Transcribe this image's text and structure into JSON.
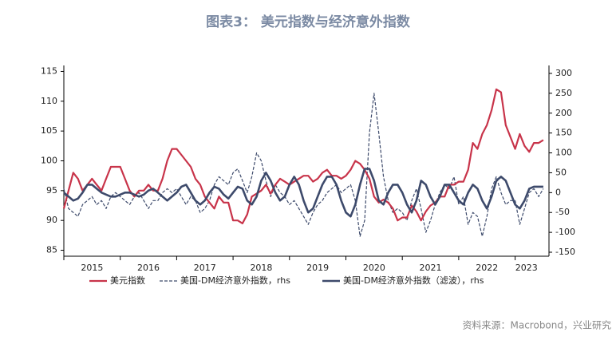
{
  "chart_data": {
    "type": "line",
    "title": "图表3：  美元指数与经济意外指数",
    "source": "资料来源：Macrobond，兴业研究",
    "x": [
      2015,
      2015.083,
      2015.167,
      2015.25,
      2015.333,
      2015.417,
      2015.5,
      2015.583,
      2015.667,
      2015.75,
      2015.833,
      2015.917,
      2016,
      2016.083,
      2016.167,
      2016.25,
      2016.333,
      2016.417,
      2016.5,
      2016.583,
      2016.667,
      2016.75,
      2016.833,
      2016.917,
      2017,
      2017.083,
      2017.167,
      2017.25,
      2017.333,
      2017.417,
      2017.5,
      2017.583,
      2017.667,
      2017.75,
      2017.833,
      2017.917,
      2018,
      2018.083,
      2018.167,
      2018.25,
      2018.333,
      2018.417,
      2018.5,
      2018.583,
      2018.667,
      2018.75,
      2018.833,
      2018.917,
      2019,
      2019.083,
      2019.167,
      2019.25,
      2019.333,
      2019.417,
      2019.5,
      2019.583,
      2019.667,
      2019.75,
      2019.833,
      2019.917,
      2020,
      2020.083,
      2020.167,
      2020.25,
      2020.333,
      2020.417,
      2020.5,
      2020.583,
      2020.667,
      2020.75,
      2020.833,
      2020.917,
      2021,
      2021.083,
      2021.167,
      2021.25,
      2021.333,
      2021.417,
      2021.5,
      2021.583,
      2021.667,
      2021.75,
      2021.833,
      2021.917,
      2022,
      2022.083,
      2022.167,
      2022.25,
      2022.333,
      2022.417,
      2022.5,
      2022.583,
      2022.667,
      2022.75,
      2022.833,
      2022.917,
      2023,
      2023.083,
      2023.167,
      2023.25,
      2023.333,
      2023.417,
      2023.5
    ],
    "series": [
      {
        "name": "美元指数",
        "color": "#c8344a",
        "style": "solid",
        "width": 2.2,
        "values": [
          92,
          95,
          98,
          97,
          95,
          96,
          97,
          96,
          95,
          97,
          99,
          99,
          99,
          97,
          95,
          94,
          95,
          95,
          96,
          95,
          95,
          97,
          100,
          102,
          102,
          101,
          100,
          99,
          97,
          96,
          94,
          93,
          92,
          94,
          93,
          93,
          90,
          90,
          89.5,
          91,
          94,
          94.5,
          95,
          96,
          94.5,
          96,
          97,
          96.5,
          96,
          96.5,
          97,
          97.5,
          97.5,
          96.5,
          97,
          98,
          98.5,
          97.5,
          97.5,
          97,
          97.5,
          98.5,
          100,
          99.5,
          98.5,
          97,
          94,
          93,
          93.5,
          93,
          92,
          90,
          90.5,
          90.5,
          92.5,
          91.5,
          90,
          91.5,
          92.5,
          93,
          94,
          94,
          96,
          96,
          96.5,
          96.5,
          98.5,
          103,
          102,
          104.5,
          106,
          108.5,
          112,
          111.5,
          106,
          104,
          102,
          104.5,
          102.5,
          101.5,
          103,
          103,
          103.5
        ]
      },
      {
        "name": "美国-DM经济意外指数，rhs",
        "color": "#3d4a6b",
        "style": "dashed",
        "width": 1.2,
        "axis": "y2",
        "values": [
          10,
          -40,
          -50,
          -60,
          -30,
          -20,
          -10,
          -30,
          -20,
          -40,
          -10,
          0,
          -10,
          -20,
          -30,
          -10,
          0,
          -20,
          -40,
          -20,
          -20,
          0,
          10,
          0,
          10,
          -10,
          -30,
          -10,
          -20,
          -50,
          -40,
          -20,
          20,
          40,
          30,
          20,
          50,
          60,
          30,
          0,
          40,
          100,
          80,
          30,
          -10,
          20,
          0,
          -10,
          -30,
          -20,
          -40,
          -60,
          -80,
          -50,
          -30,
          -20,
          0,
          10,
          20,
          0,
          10,
          20,
          -20,
          -110,
          -70,
          150,
          250,
          150,
          40,
          -20,
          -50,
          -40,
          -50,
          -70,
          -20,
          10,
          -40,
          -100,
          -70,
          -30,
          0,
          20,
          10,
          40,
          -30,
          -10,
          -80,
          -50,
          -60,
          -110,
          -60,
          10,
          40,
          0,
          -30,
          -20,
          -20,
          -80,
          -40,
          0,
          10,
          -10,
          10
        ]
      },
      {
        "name": "美国-DM经济意外指数（滤波），rhs",
        "color": "#3d4a6b",
        "style": "solid",
        "width": 2.6,
        "axis": "y2",
        "values": [
          0,
          -10,
          -20,
          -15,
          0,
          20,
          20,
          10,
          0,
          -5,
          -10,
          -10,
          -5,
          0,
          0,
          -5,
          -10,
          -5,
          5,
          10,
          0,
          -10,
          -20,
          -10,
          0,
          15,
          20,
          0,
          -20,
          -30,
          -20,
          0,
          15,
          10,
          -5,
          -15,
          0,
          15,
          10,
          -20,
          -30,
          -10,
          30,
          50,
          30,
          0,
          -20,
          -10,
          20,
          40,
          20,
          -20,
          -50,
          -40,
          -10,
          20,
          40,
          40,
          20,
          -20,
          -50,
          -60,
          -30,
          20,
          60,
          60,
          30,
          -20,
          -30,
          0,
          20,
          20,
          0,
          -30,
          -50,
          -20,
          30,
          20,
          -10,
          -30,
          -10,
          20,
          20,
          0,
          -20,
          -30,
          0,
          20,
          10,
          -20,
          -40,
          -10,
          30,
          40,
          30,
          0,
          -30,
          -40,
          -20,
          10,
          15,
          15,
          15
        ]
      }
    ],
    "xlim": [
      2015,
      2023.6
    ],
    "xticks": [
      {
        "value": 2015.5,
        "label": "2015"
      },
      {
        "value": 2016.5,
        "label": "2016"
      },
      {
        "value": 2017.5,
        "label": "2017"
      },
      {
        "value": 2018.5,
        "label": "2018"
      },
      {
        "value": 2019.5,
        "label": "2019"
      },
      {
        "value": 2020.5,
        "label": "2020"
      },
      {
        "value": 2021.5,
        "label": "2021"
      },
      {
        "value": 2022.5,
        "label": "2022"
      },
      {
        "value": 2023.2,
        "label": "2023"
      }
    ],
    "ylim": [
      84,
      116
    ],
    "yticks": [
      85,
      90,
      95,
      100,
      105,
      110,
      115
    ],
    "y2lim": [
      -160,
      320
    ],
    "y2ticks": [
      -150,
      -100,
      -50,
      0,
      50,
      100,
      150,
      200,
      250,
      300
    ]
  }
}
